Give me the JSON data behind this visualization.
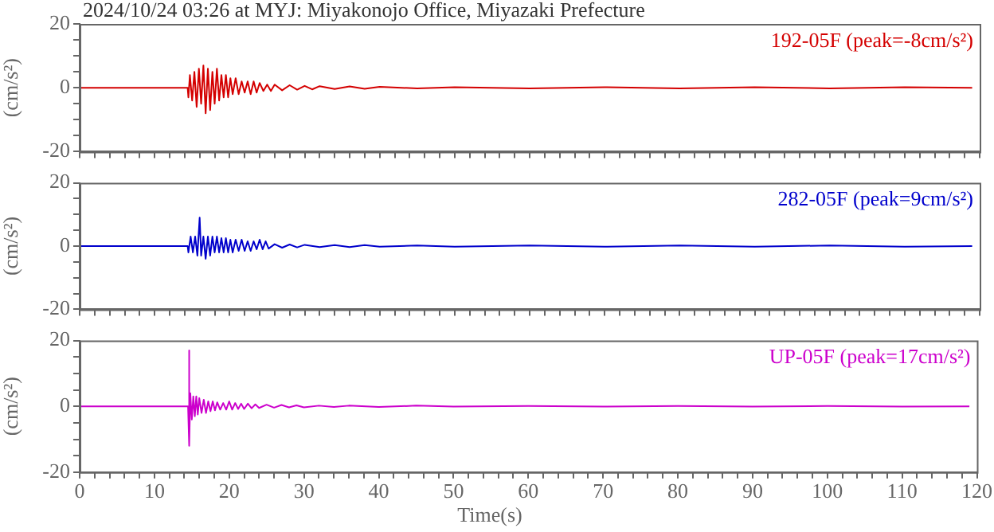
{
  "chart_data": [
    {
      "type": "line",
      "title": "2024/10/24 03:26 at MYJ: Miyakonojo Office, Miyazaki Prefecture",
      "ylabel": "(cm/s²)",
      "annotations": [
        "192-05F (peak=-8cm/s²)"
      ],
      "color": "#d40000",
      "tick_labels": "y",
      "marker": "none",
      "legend": false,
      "xlim": [
        0,
        120
      ],
      "ylim": [
        -20,
        20
      ],
      "xticks": [
        0,
        {
          "value": 2,
          "label": null
        },
        {
          "value": 4,
          "label": null
        },
        {
          "value": 6,
          "label": null
        },
        {
          "value": 8,
          "label": null
        },
        10,
        {
          "value": 12,
          "label": null
        },
        {
          "value": 14,
          "label": null
        },
        {
          "value": 16,
          "label": null
        },
        {
          "value": 18,
          "label": null
        },
        20,
        {
          "value": 22,
          "label": null
        },
        {
          "value": 24,
          "label": null
        },
        {
          "value": 26,
          "label": null
        },
        {
          "value": 28,
          "label": null
        },
        30,
        {
          "value": 32,
          "label": null
        },
        {
          "value": 34,
          "label": null
        },
        {
          "value": 36,
          "label": null
        },
        {
          "value": 38,
          "label": null
        },
        40,
        {
          "value": 42,
          "label": null
        },
        {
          "value": 44,
          "label": null
        },
        {
          "value": 46,
          "label": null
        },
        {
          "value": 48,
          "label": null
        },
        50,
        {
          "value": 52,
          "label": null
        },
        {
          "value": 54,
          "label": null
        },
        {
          "value": 56,
          "label": null
        },
        {
          "value": 58,
          "label": null
        },
        60,
        {
          "value": 62,
          "label": null
        },
        {
          "value": 64,
          "label": null
        },
        {
          "value": 66,
          "label": null
        },
        {
          "value": 68,
          "label": null
        },
        70,
        {
          "value": 72,
          "label": null
        },
        {
          "value": 74,
          "label": null
        },
        {
          "value": 76,
          "label": null
        },
        {
          "value": 78,
          "label": null
        },
        80,
        {
          "value": 82,
          "label": null
        },
        {
          "value": 84,
          "label": null
        },
        {
          "value": 86,
          "label": null
        },
        {
          "value": 88,
          "label": null
        },
        90,
        {
          "value": 92,
          "label": null
        },
        {
          "value": 94,
          "label": null
        },
        {
          "value": 96,
          "label": null
        },
        {
          "value": 98,
          "label": null
        },
        100,
        {
          "value": 102,
          "label": null
        },
        {
          "value": 104,
          "label": null
        },
        {
          "value": 106,
          "label": null
        },
        {
          "value": 108,
          "label": null
        },
        110,
        {
          "value": 112,
          "label": null
        },
        {
          "value": 114,
          "label": null
        },
        {
          "value": 116,
          "label": null
        },
        {
          "value": 118,
          "label": null
        },
        120
      ],
      "yticks": [
        -20,
        {
          "value": -15,
          "label": null
        },
        {
          "value": -10,
          "label": null
        },
        {
          "value": -5,
          "label": null
        },
        0,
        {
          "value": 5,
          "label": null
        },
        {
          "value": 10,
          "label": null
        },
        {
          "value": 15,
          "label": null
        },
        20
      ],
      "x": [
        0,
        14.4,
        14.5,
        14.7,
        15.0,
        15.3,
        15.6,
        15.9,
        16.2,
        16.5,
        16.8,
        17.1,
        17.4,
        17.7,
        18.0,
        18.3,
        18.6,
        18.9,
        19.2,
        19.5,
        19.8,
        20.1,
        20.4,
        20.8,
        21.2,
        21.6,
        22.0,
        22.4,
        22.8,
        23.2,
        23.6,
        24.0,
        24.5,
        25,
        25.5,
        26,
        27,
        28,
        29,
        30,
        31,
        32,
        34,
        36,
        38,
        40,
        45,
        50,
        60,
        70,
        80,
        90,
        100,
        110,
        119
      ],
      "values": [
        0,
        0,
        -3,
        4,
        -4,
        5,
        -6,
        6,
        -5,
        7,
        -8,
        6,
        -7,
        5,
        -5,
        6,
        -4,
        4,
        -3,
        4,
        -3,
        3,
        -2,
        3,
        -2,
        2,
        -1.5,
        2,
        -2,
        2,
        -1.5,
        1.5,
        -1,
        1,
        -1,
        1,
        -0.8,
        0.8,
        -0.6,
        0.6,
        -0.5,
        0.5,
        -0.4,
        0.4,
        -0.3,
        0.3,
        -0.2,
        0.2,
        -0.2,
        0.2,
        -0.2,
        0.2,
        -0.2,
        0.2,
        0
      ]
    },
    {
      "type": "line",
      "ylabel": "(cm/s²)",
      "annotations": [
        "282-05F (peak=9cm/s²)"
      ],
      "color": "#0000cc",
      "tick_labels": "y",
      "marker": "none",
      "legend": false,
      "xlim": [
        0,
        120
      ],
      "ylim": [
        -20,
        20
      ],
      "xticks": [
        0,
        {
          "value": 2,
          "label": null
        },
        {
          "value": 4,
          "label": null
        },
        {
          "value": 6,
          "label": null
        },
        {
          "value": 8,
          "label": null
        },
        10,
        {
          "value": 12,
          "label": null
        },
        {
          "value": 14,
          "label": null
        },
        {
          "value": 16,
          "label": null
        },
        {
          "value": 18,
          "label": null
        },
        20,
        {
          "value": 22,
          "label": null
        },
        {
          "value": 24,
          "label": null
        },
        {
          "value": 26,
          "label": null
        },
        {
          "value": 28,
          "label": null
        },
        30,
        {
          "value": 32,
          "label": null
        },
        {
          "value": 34,
          "label": null
        },
        {
          "value": 36,
          "label": null
        },
        {
          "value": 38,
          "label": null
        },
        40,
        {
          "value": 42,
          "label": null
        },
        {
          "value": 44,
          "label": null
        },
        {
          "value": 46,
          "label": null
        },
        {
          "value": 48,
          "label": null
        },
        50,
        {
          "value": 52,
          "label": null
        },
        {
          "value": 54,
          "label": null
        },
        {
          "value": 56,
          "label": null
        },
        {
          "value": 58,
          "label": null
        },
        60,
        {
          "value": 62,
          "label": null
        },
        {
          "value": 64,
          "label": null
        },
        {
          "value": 66,
          "label": null
        },
        {
          "value": 68,
          "label": null
        },
        70,
        {
          "value": 72,
          "label": null
        },
        {
          "value": 74,
          "label": null
        },
        {
          "value": 76,
          "label": null
        },
        {
          "value": 78,
          "label": null
        },
        80,
        {
          "value": 82,
          "label": null
        },
        {
          "value": 84,
          "label": null
        },
        {
          "value": 86,
          "label": null
        },
        {
          "value": 88,
          "label": null
        },
        90,
        {
          "value": 92,
          "label": null
        },
        {
          "value": 94,
          "label": null
        },
        {
          "value": 96,
          "label": null
        },
        {
          "value": 98,
          "label": null
        },
        100,
        {
          "value": 102,
          "label": null
        },
        {
          "value": 104,
          "label": null
        },
        {
          "value": 106,
          "label": null
        },
        {
          "value": 108,
          "label": null
        },
        110,
        {
          "value": 112,
          "label": null
        },
        {
          "value": 114,
          "label": null
        },
        {
          "value": 116,
          "label": null
        },
        {
          "value": 118,
          "label": null
        },
        120
      ],
      "yticks": [
        -20,
        {
          "value": -15,
          "label": null
        },
        {
          "value": -10,
          "label": null
        },
        {
          "value": -5,
          "label": null
        },
        0,
        {
          "value": 5,
          "label": null
        },
        {
          "value": 10,
          "label": null
        },
        {
          "value": 15,
          "label": null
        },
        20
      ],
      "x": [
        0,
        14.4,
        14.5,
        14.8,
        15.1,
        15.4,
        15.7,
        16.0,
        16.2,
        16.5,
        16.8,
        17.1,
        17.4,
        17.7,
        18.0,
        18.3,
        18.6,
        18.9,
        19.2,
        19.5,
        19.8,
        20.1,
        20.4,
        20.8,
        21.2,
        21.6,
        22.0,
        22.4,
        22.8,
        23.2,
        23.6,
        24.0,
        24.4,
        24.8,
        25.2,
        26,
        27,
        28,
        29,
        30,
        32,
        34,
        36,
        38,
        40,
        45,
        50,
        60,
        70,
        80,
        90,
        100,
        110,
        119
      ],
      "values": [
        0,
        0,
        -2,
        3,
        -2,
        3,
        -3,
        9,
        -3,
        3,
        -4,
        3,
        -3,
        3,
        -2,
        3,
        -2,
        2.5,
        -2,
        2.5,
        -2,
        2,
        -2,
        2,
        -1.5,
        2,
        -1.5,
        1.5,
        -1.5,
        1.5,
        -1,
        2,
        -1,
        1.5,
        -0.8,
        0.6,
        -0.5,
        0.5,
        -0.4,
        0.4,
        -0.3,
        0.3,
        -0.3,
        0.3,
        -0.2,
        0.2,
        -0.2,
        0.2,
        -0.2,
        0.2,
        -0.2,
        0.2,
        -0.2,
        0
      ]
    },
    {
      "type": "line",
      "xlabel": "Time(s)",
      "ylabel": "(cm/s²)",
      "annotations": [
        "UP-05F (peak=17cm/s²)"
      ],
      "color": "#cc00cc",
      "marker": "none",
      "legend": false,
      "xlim": [
        0,
        120
      ],
      "ylim": [
        -20,
        20
      ],
      "xticks": [
        0,
        {
          "value": 2,
          "label": null
        },
        {
          "value": 4,
          "label": null
        },
        {
          "value": 6,
          "label": null
        },
        {
          "value": 8,
          "label": null
        },
        10,
        {
          "value": 12,
          "label": null
        },
        {
          "value": 14,
          "label": null
        },
        {
          "value": 16,
          "label": null
        },
        {
          "value": 18,
          "label": null
        },
        20,
        {
          "value": 22,
          "label": null
        },
        {
          "value": 24,
          "label": null
        },
        {
          "value": 26,
          "label": null
        },
        {
          "value": 28,
          "label": null
        },
        30,
        {
          "value": 32,
          "label": null
        },
        {
          "value": 34,
          "label": null
        },
        {
          "value": 36,
          "label": null
        },
        {
          "value": 38,
          "label": null
        },
        40,
        {
          "value": 42,
          "label": null
        },
        {
          "value": 44,
          "label": null
        },
        {
          "value": 46,
          "label": null
        },
        {
          "value": 48,
          "label": null
        },
        50,
        {
          "value": 52,
          "label": null
        },
        {
          "value": 54,
          "label": null
        },
        {
          "value": 56,
          "label": null
        },
        {
          "value": 58,
          "label": null
        },
        60,
        {
          "value": 62,
          "label": null
        },
        {
          "value": 64,
          "label": null
        },
        {
          "value": 66,
          "label": null
        },
        {
          "value": 68,
          "label": null
        },
        70,
        {
          "value": 72,
          "label": null
        },
        {
          "value": 74,
          "label": null
        },
        {
          "value": 76,
          "label": null
        },
        {
          "value": 78,
          "label": null
        },
        80,
        {
          "value": 82,
          "label": null
        },
        {
          "value": 84,
          "label": null
        },
        {
          "value": 86,
          "label": null
        },
        {
          "value": 88,
          "label": null
        },
        90,
        {
          "value": 92,
          "label": null
        },
        {
          "value": 94,
          "label": null
        },
        {
          "value": 96,
          "label": null
        },
        {
          "value": 98,
          "label": null
        },
        100,
        {
          "value": 102,
          "label": null
        },
        {
          "value": 104,
          "label": null
        },
        {
          "value": 106,
          "label": null
        },
        {
          "value": 108,
          "label": null
        },
        110,
        {
          "value": 112,
          "label": null
        },
        {
          "value": 114,
          "label": null
        },
        {
          "value": 116,
          "label": null
        },
        {
          "value": 118,
          "label": null
        },
        120
      ],
      "yticks": [
        -20,
        {
          "value": -15,
          "label": null
        },
        {
          "value": -10,
          "label": null
        },
        {
          "value": -5,
          "label": null
        },
        0,
        {
          "value": 5,
          "label": null
        },
        {
          "value": 10,
          "label": null
        },
        {
          "value": 15,
          "label": null
        },
        20
      ],
      "x": [
        0,
        14.5,
        14.6,
        14.7,
        14.8,
        15.0,
        15.2,
        15.4,
        15.6,
        15.8,
        16.0,
        16.3,
        16.6,
        16.9,
        17.2,
        17.5,
        17.8,
        18.1,
        18.4,
        18.8,
        19.2,
        19.6,
        20.0,
        20.4,
        20.8,
        21.2,
        21.6,
        22.0,
        22.5,
        23,
        23.5,
        24,
        25,
        26,
        27,
        28,
        29,
        30,
        32,
        34,
        36,
        40,
        45,
        50,
        60,
        70,
        80,
        90,
        100,
        110,
        119
      ],
      "values": [
        0,
        0,
        17,
        -12,
        4,
        -4,
        3,
        -3,
        3,
        -2.5,
        2.5,
        -2,
        2,
        -2,
        1.5,
        -1.5,
        1.5,
        -1.2,
        1.2,
        -1,
        1,
        -1,
        1.5,
        -1,
        1,
        -0.8,
        0.8,
        -0.8,
        0.8,
        -0.6,
        0.6,
        -0.5,
        0.5,
        -0.4,
        0.4,
        -0.3,
        0.3,
        -0.3,
        0.2,
        -0.2,
        0.2,
        -0.2,
        0.2,
        -0.1,
        0.1,
        -0.1,
        0.1,
        -0.1,
        0.1,
        -0.1,
        0
      ]
    }
  ]
}
